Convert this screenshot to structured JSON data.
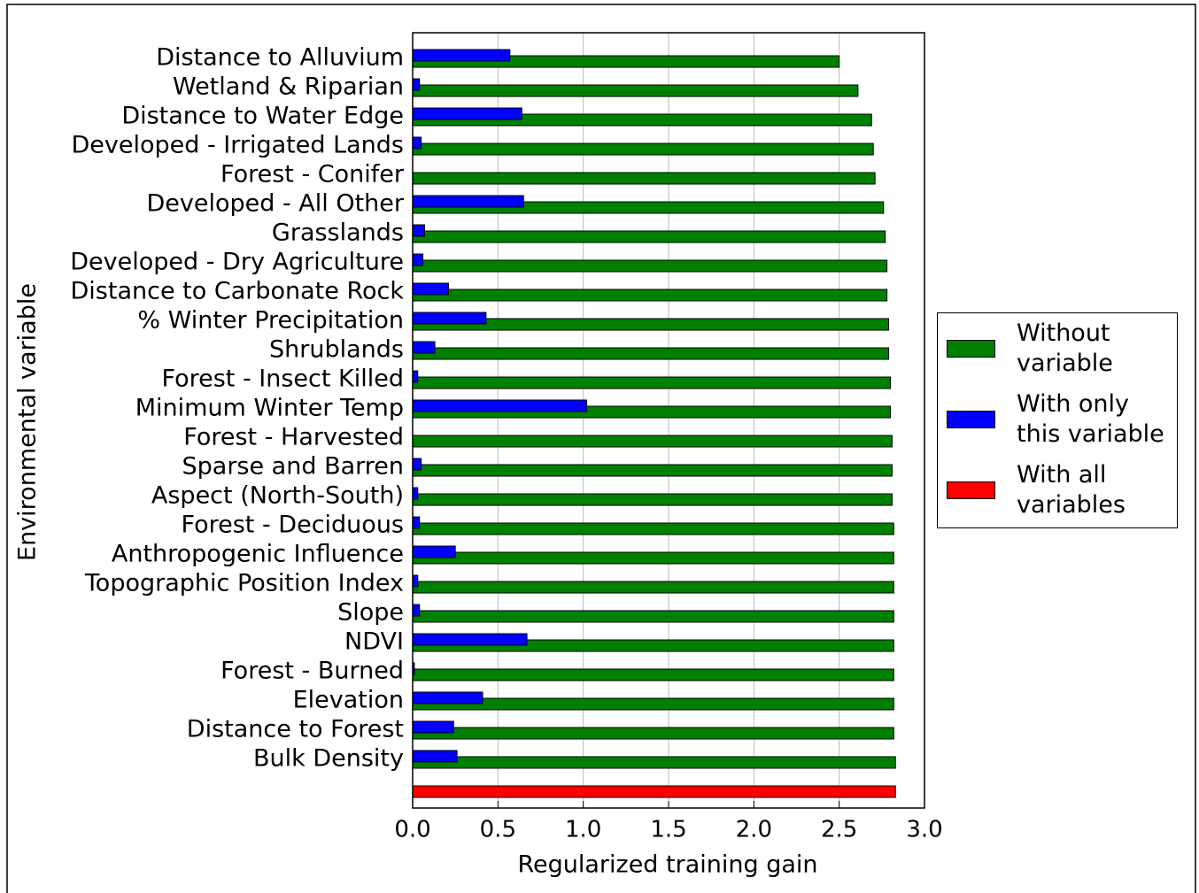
{
  "chart_data": {
    "type": "barh",
    "xlabel": "Regularized training gain",
    "ylabel": "Environmental variable",
    "categories": [
      "Distance to Alluvium",
      "Wetland & Riparian",
      "Distance to Water Edge",
      "Developed - Irrigated Lands",
      "Forest - Conifer",
      "Developed - All Other",
      "Grasslands",
      "Developed - Dry Agriculture",
      "Distance to Carbonate Rock",
      "% Winter Precipitation",
      "Shrublands",
      "Forest - Insect Killed",
      "Minimum Winter Temp",
      "Forest - Harvested",
      "Sparse and Barren",
      "Aspect (North-South)",
      "Forest - Deciduous",
      "Anthropogenic Influence",
      "Topographic Position Index",
      "Slope",
      "NDVI",
      "Forest - Burned",
      "Elevation",
      "Distance to Forest",
      "Bulk Density",
      null
    ],
    "series": [
      {
        "name": "Without variable",
        "color": "#008000",
        "values": [
          2.5,
          2.61,
          2.69,
          2.7,
          2.71,
          2.76,
          2.77,
          2.78,
          2.78,
          2.79,
          2.79,
          2.8,
          2.8,
          2.81,
          2.81,
          2.81,
          2.82,
          2.82,
          2.82,
          2.82,
          2.82,
          2.82,
          2.82,
          2.82,
          2.83,
          null
        ]
      },
      {
        "name": "With only this variable",
        "color": "#0000ff",
        "values": [
          0.57,
          0.04,
          0.64,
          0.05,
          0,
          0.65,
          0.07,
          0.06,
          0.21,
          0.43,
          0.13,
          0.03,
          1.02,
          0,
          0.05,
          0.03,
          0.04,
          0.25,
          0.03,
          0.04,
          0.67,
          0.01,
          0.41,
          0.24,
          0.26,
          null
        ]
      },
      {
        "name": "With all variables",
        "color": "#ff0000",
        "values": [
          null,
          null,
          null,
          null,
          null,
          null,
          null,
          null,
          null,
          null,
          null,
          null,
          null,
          null,
          null,
          null,
          null,
          null,
          null,
          null,
          null,
          null,
          null,
          null,
          null,
          2.83
        ]
      }
    ],
    "xlim": [
      0,
      3
    ],
    "xticks": [
      {
        "value": 0,
        "label": "0.0"
      },
      0.5,
      {
        "value": 1,
        "label": "1.0"
      },
      1.5,
      {
        "value": 2,
        "label": "2.0"
      },
      2.5,
      {
        "value": 3,
        "label": "3.0"
      }
    ],
    "grid": true,
    "legend": "right"
  }
}
